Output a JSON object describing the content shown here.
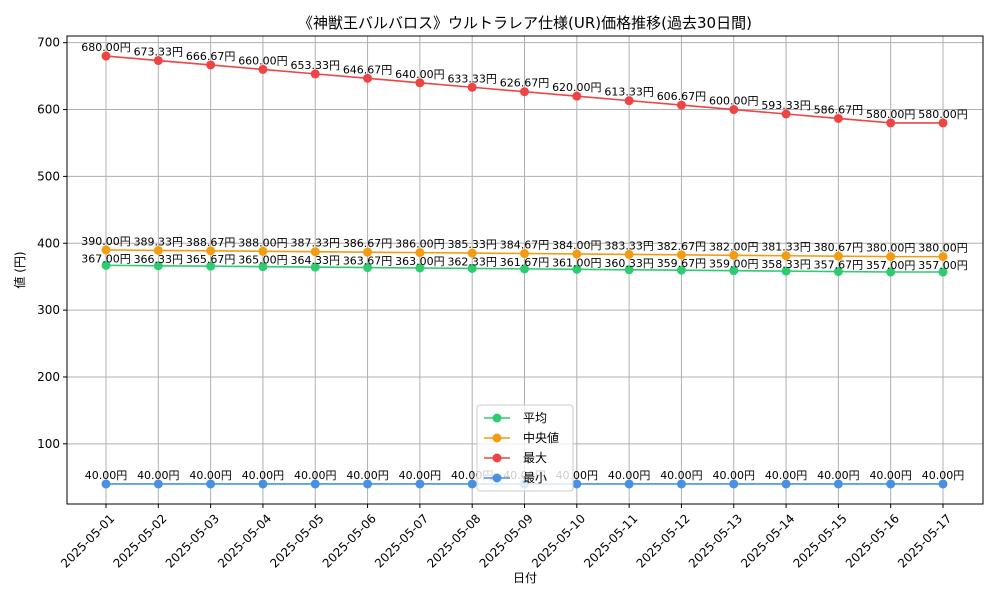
{
  "chart_data": {
    "type": "line",
    "title": "《神獣王バルバロス》ウルトラレア仕様(UR)価格推移(過去30日間)",
    "xlabel": "日付",
    "ylabel": "値 (円)",
    "ylim": [
      10,
      710
    ],
    "yticks": [
      100,
      200,
      300,
      400,
      500,
      600,
      700
    ],
    "grid": true,
    "legend_position": "bottom-center",
    "value_suffix": "円",
    "categories": [
      "2025-05-01",
      "2025-05-02",
      "2025-05-03",
      "2025-05-04",
      "2025-05-05",
      "2025-05-06",
      "2025-05-07",
      "2025-05-08",
      "2025-05-09",
      "2025-05-10",
      "2025-05-11",
      "2025-05-12",
      "2025-05-13",
      "2025-05-14",
      "2025-05-15",
      "2025-05-16",
      "2025-05-17"
    ],
    "series": [
      {
        "name": "平均",
        "color": "#2ecc71",
        "label_position": "below",
        "values": [
          367.0,
          366.33,
          365.67,
          365.0,
          364.33,
          363.67,
          363.0,
          362.33,
          361.67,
          361.0,
          360.33,
          359.67,
          359.0,
          358.33,
          357.67,
          357.0,
          357.0
        ]
      },
      {
        "name": "中央値",
        "color": "#f39c12",
        "label_position": "above",
        "values": [
          390.0,
          389.33,
          388.67,
          388.0,
          387.33,
          386.67,
          386.0,
          385.33,
          384.67,
          384.0,
          383.33,
          382.67,
          382.0,
          381.33,
          380.67,
          380.0,
          380.0
        ]
      },
      {
        "name": "最大",
        "color": "#ef4444",
        "label_position": "above",
        "values": [
          680.0,
          673.33,
          666.67,
          660.0,
          653.33,
          646.67,
          640.0,
          633.33,
          626.67,
          620.0,
          613.33,
          606.67,
          600.0,
          593.33,
          586.67,
          580.0,
          580.0
        ]
      },
      {
        "name": "最小",
        "color": "#4a90e2",
        "label_position": "above",
        "values": [
          40.0,
          40.0,
          40.0,
          40.0,
          40.0,
          40.0,
          40.0,
          40.0,
          40.0,
          40.0,
          40.0,
          40.0,
          40.0,
          40.0,
          40.0,
          40.0,
          40.0
        ]
      }
    ]
  }
}
